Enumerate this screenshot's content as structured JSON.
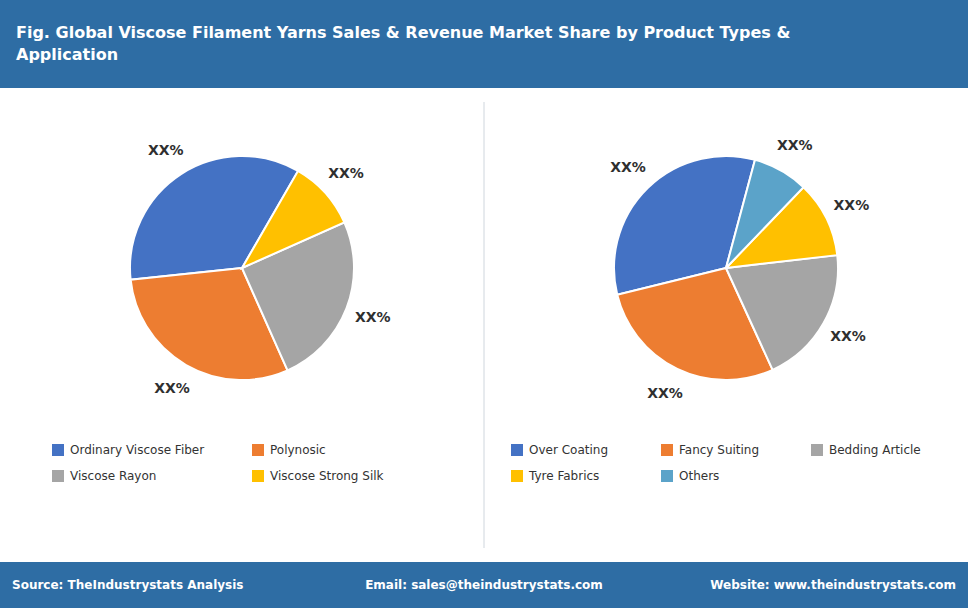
{
  "chart_data": [
    {
      "type": "pie",
      "title": "Fig. Global Viscose Filament Yarns Sales & Revenue Market Share by Product Types &\nApplication",
      "annotations": [
        "Source: TheIndustrystats Analysis",
        "Email: sales@theindustrystats.com",
        "Website: www.theindustrystats.com"
      ],
      "categories": [
        "Ordinary Viscose Fiber",
        "Polynosic",
        "Viscose Rayon",
        "Viscose Strong Silk"
      ],
      "values": [
        35,
        30,
        25,
        10
      ],
      "value_labels": [
        "XX%",
        "XX%",
        "XX%",
        "XX%"
      ],
      "colors": [
        "#4472c4",
        "#ed7d31",
        "#a5a5a5",
        "#ffc000"
      ],
      "data_labels": true,
      "legend": "bottom"
    },
    {
      "type": "pie",
      "categories": [
        "Over Coating",
        "Fancy Suiting",
        "Bedding Article",
        "Tyre Fabrics",
        "Others"
      ],
      "values": [
        33,
        28,
        20,
        11,
        8
      ],
      "value_labels": [
        "XX%",
        "XX%",
        "XX%",
        "XX%",
        "XX%"
      ],
      "colors": [
        "#4472c4",
        "#ed7d31",
        "#a5a5a5",
        "#ffc000",
        "#5ba3c9"
      ],
      "data_labels": true,
      "legend": "bottom"
    }
  ]
}
